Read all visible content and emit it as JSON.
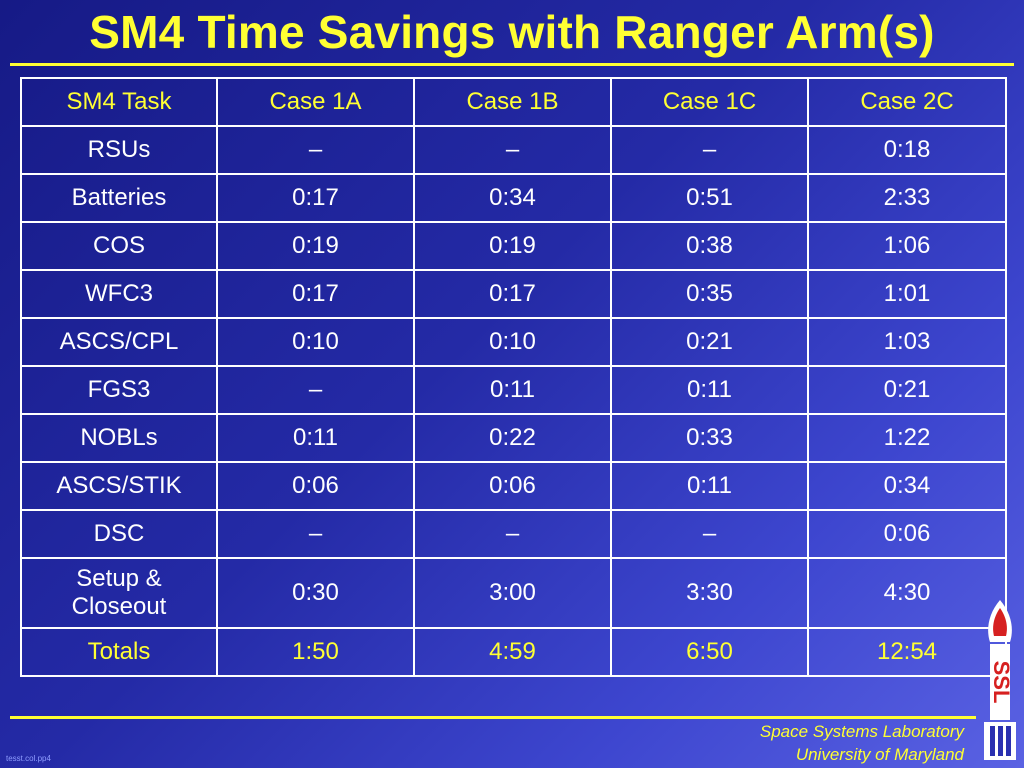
{
  "title": "SM4 Time Savings with Ranger Arm(s)",
  "table": {
    "headers": [
      "SM4 Task",
      "Case 1A",
      "Case 1B",
      "Case 1C",
      "Case 2C"
    ],
    "rows": [
      {
        "task": "RSUs",
        "values": [
          "–",
          "–",
          "–",
          "0:18"
        ]
      },
      {
        "task": "Batteries",
        "values": [
          "0:17",
          "0:34",
          "0:51",
          "2:33"
        ]
      },
      {
        "task": "COS",
        "values": [
          "0:19",
          "0:19",
          "0:38",
          "1:06"
        ]
      },
      {
        "task": "WFC3",
        "values": [
          "0:17",
          "0:17",
          "0:35",
          "1:01"
        ]
      },
      {
        "task": "ASCS/CPL",
        "values": [
          "0:10",
          "0:10",
          "0:21",
          "1:03"
        ]
      },
      {
        "task": "FGS3",
        "values": [
          "–",
          "0:11",
          "0:11",
          "0:21"
        ]
      },
      {
        "task": "NOBLs",
        "values": [
          "0:11",
          "0:22",
          "0:33",
          "1:22"
        ]
      },
      {
        "task": "ASCS/STIK",
        "values": [
          "0:06",
          "0:06",
          "0:11",
          "0:34"
        ]
      },
      {
        "task": "DSC",
        "values": [
          "–",
          "–",
          "–",
          "0:06"
        ]
      },
      {
        "task_line1": "Setup &",
        "task_line2": "Closeout",
        "values": [
          "0:30",
          "3:00",
          "3:30",
          "4:30"
        ]
      }
    ],
    "totals": {
      "task": "Totals",
      "values": [
        "1:50",
        "4:59",
        "6:50",
        "12:54"
      ]
    }
  },
  "footer": {
    "line1": "Space Systems Laboratory",
    "line2": "University of Maryland"
  },
  "file_note": "tesst.col.pp4",
  "logo": {
    "letters": "SSL",
    "icon": "ssl-rocket-logo",
    "colors": {
      "red": "#d62020",
      "white": "#ffffff",
      "blue": "#2a30b0"
    }
  },
  "colors": {
    "title": "#ffff33",
    "text": "#ffffff",
    "background": "#242aa6"
  }
}
